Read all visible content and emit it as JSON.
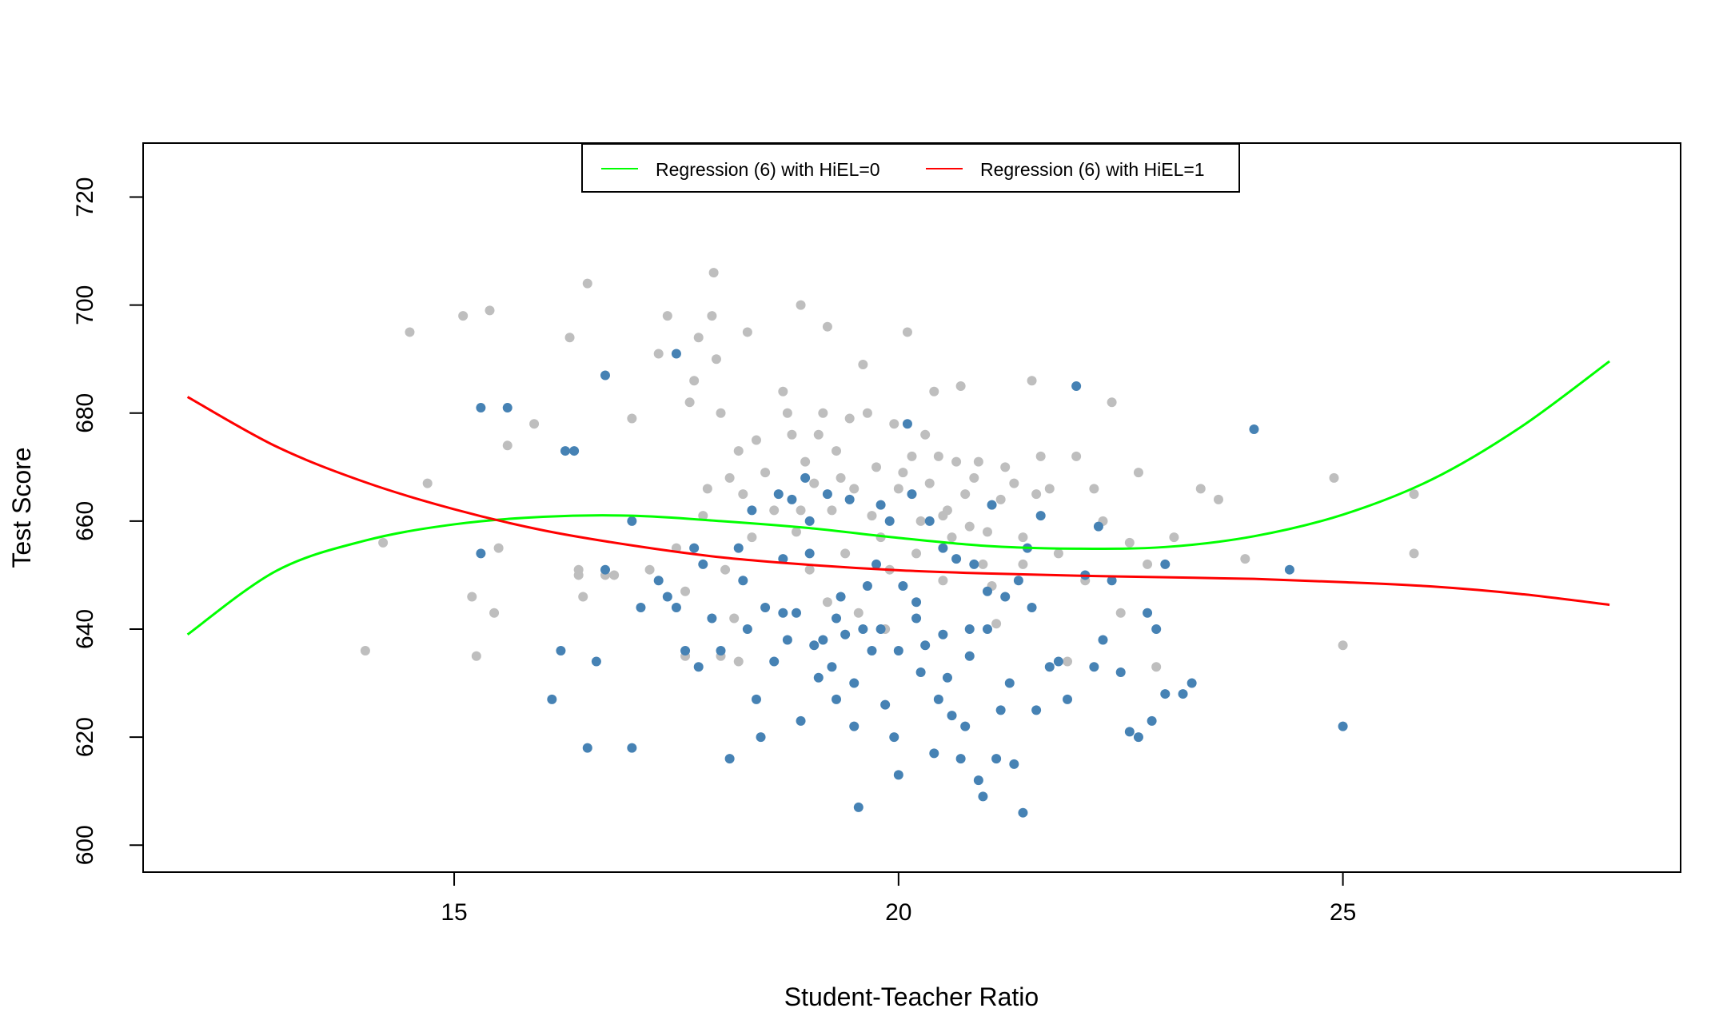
{
  "chart_data": {
    "type": "scatter",
    "title": "",
    "xlabel": "Student-Teacher Ratio",
    "ylabel": "Test Score",
    "xlim": [
      11.5,
      28.8
    ],
    "ylim": [
      595,
      730
    ],
    "xticks": [
      15,
      20,
      25
    ],
    "yticks": [
      600,
      620,
      640,
      660,
      680,
      700,
      720
    ],
    "grid": false,
    "legend_position": "top-center",
    "colors": {
      "points_low_el": "#bebebe",
      "points_high_el": "#4682b4",
      "curve_hiel0": "#00ff00",
      "curve_hiel1": "#ff0000"
    },
    "series": [
      {
        "kind": "points",
        "color": "#bebebe",
        "points": [
          [
            14.0,
            636
          ],
          [
            14.2,
            656
          ],
          [
            14.5,
            695
          ],
          [
            14.7,
            667
          ],
          [
            15.1,
            698
          ],
          [
            15.2,
            646
          ],
          [
            15.25,
            635
          ],
          [
            15.4,
            699
          ],
          [
            15.45,
            643
          ],
          [
            15.5,
            655
          ],
          [
            15.6,
            674
          ],
          [
            15.9,
            678
          ],
          [
            16.3,
            694
          ],
          [
            16.4,
            651
          ],
          [
            16.45,
            646
          ],
          [
            16.5,
            704
          ],
          [
            16.7,
            650
          ],
          [
            17.0,
            679
          ],
          [
            17.2,
            651
          ],
          [
            17.3,
            691
          ],
          [
            17.4,
            698
          ],
          [
            17.5,
            655
          ],
          [
            17.6,
            647
          ],
          [
            17.65,
            682
          ],
          [
            17.7,
            686
          ],
          [
            17.75,
            694
          ],
          [
            17.8,
            661
          ],
          [
            17.85,
            666
          ],
          [
            17.9,
            698
          ],
          [
            17.92,
            706
          ],
          [
            17.95,
            690
          ],
          [
            18.0,
            680
          ],
          [
            18.05,
            651
          ],
          [
            18.1,
            668
          ],
          [
            18.15,
            642
          ],
          [
            18.2,
            673
          ],
          [
            18.25,
            665
          ],
          [
            18.3,
            695
          ],
          [
            18.35,
            657
          ],
          [
            18.4,
            675
          ],
          [
            18.5,
            669
          ],
          [
            18.6,
            662
          ],
          [
            18.7,
            684
          ],
          [
            18.75,
            680
          ],
          [
            18.8,
            676
          ],
          [
            18.85,
            658
          ],
          [
            18.9,
            700
          ],
          [
            18.95,
            671
          ],
          [
            19.0,
            651
          ],
          [
            19.05,
            667
          ],
          [
            19.1,
            676
          ],
          [
            19.15,
            680
          ],
          [
            19.2,
            696
          ],
          [
            19.25,
            662
          ],
          [
            19.3,
            673
          ],
          [
            19.35,
            668
          ],
          [
            19.4,
            654
          ],
          [
            19.45,
            679
          ],
          [
            19.5,
            666
          ],
          [
            19.55,
            643
          ],
          [
            19.6,
            689
          ],
          [
            19.65,
            680
          ],
          [
            19.7,
            661
          ],
          [
            19.75,
            670
          ],
          [
            19.8,
            657
          ],
          [
            19.85,
            640
          ],
          [
            19.9,
            651
          ],
          [
            19.95,
            678
          ],
          [
            20.0,
            666
          ],
          [
            20.05,
            669
          ],
          [
            20.1,
            695
          ],
          [
            20.15,
            672
          ],
          [
            20.2,
            654
          ],
          [
            20.25,
            660
          ],
          [
            20.3,
            676
          ],
          [
            20.35,
            667
          ],
          [
            20.4,
            684
          ],
          [
            20.45,
            672
          ],
          [
            20.5,
            661
          ],
          [
            20.55,
            662
          ],
          [
            20.6,
            657
          ],
          [
            20.65,
            671
          ],
          [
            20.7,
            685
          ],
          [
            20.75,
            665
          ],
          [
            20.8,
            659
          ],
          [
            20.85,
            668
          ],
          [
            20.9,
            671
          ],
          [
            20.95,
            652
          ],
          [
            21.0,
            658
          ],
          [
            21.05,
            648
          ],
          [
            21.1,
            641
          ],
          [
            21.15,
            664
          ],
          [
            21.2,
            670
          ],
          [
            21.3,
            667
          ],
          [
            21.4,
            652
          ],
          [
            21.5,
            686
          ],
          [
            21.55,
            665
          ],
          [
            21.6,
            672
          ],
          [
            21.7,
            666
          ],
          [
            21.8,
            654
          ],
          [
            21.9,
            634
          ],
          [
            22.0,
            672
          ],
          [
            22.1,
            649
          ],
          [
            22.2,
            666
          ],
          [
            22.3,
            660
          ],
          [
            22.4,
            682
          ],
          [
            22.5,
            643
          ],
          [
            22.6,
            656
          ],
          [
            22.7,
            669
          ],
          [
            22.8,
            652
          ],
          [
            22.9,
            633
          ],
          [
            23.1,
            657
          ],
          [
            23.4,
            666
          ],
          [
            23.6,
            664
          ],
          [
            23.9,
            653
          ],
          [
            24.9,
            668
          ],
          [
            25.0,
            637
          ],
          [
            25.8,
            665
          ],
          [
            25.8,
            654
          ],
          [
            18.0,
            635
          ],
          [
            17.6,
            635
          ],
          [
            18.2,
            634
          ],
          [
            16.4,
            650
          ],
          [
            16.8,
            650
          ],
          [
            19.2,
            645
          ],
          [
            20.5,
            649
          ],
          [
            21.4,
            657
          ],
          [
            18.9,
            662
          ]
        ]
      },
      {
        "kind": "points",
        "color": "#4682b4",
        "points": [
          [
            15.3,
            681
          ],
          [
            15.6,
            681
          ],
          [
            15.3,
            654
          ],
          [
            16.1,
            627
          ],
          [
            16.2,
            636
          ],
          [
            16.25,
            673
          ],
          [
            16.35,
            673
          ],
          [
            16.5,
            618
          ],
          [
            16.6,
            634
          ],
          [
            16.7,
            687
          ],
          [
            16.7,
            651
          ],
          [
            17.0,
            660
          ],
          [
            17.0,
            618
          ],
          [
            17.1,
            644
          ],
          [
            17.3,
            649
          ],
          [
            17.4,
            646
          ],
          [
            17.5,
            691
          ],
          [
            17.5,
            644
          ],
          [
            17.6,
            636
          ],
          [
            17.7,
            655
          ],
          [
            17.75,
            633
          ],
          [
            17.8,
            652
          ],
          [
            17.9,
            642
          ],
          [
            18.0,
            636
          ],
          [
            18.1,
            616
          ],
          [
            18.2,
            655
          ],
          [
            18.25,
            649
          ],
          [
            18.3,
            640
          ],
          [
            18.35,
            662
          ],
          [
            18.4,
            627
          ],
          [
            18.45,
            620
          ],
          [
            18.5,
            644
          ],
          [
            18.6,
            634
          ],
          [
            18.65,
            665
          ],
          [
            18.7,
            643
          ],
          [
            18.75,
            638
          ],
          [
            18.8,
            664
          ],
          [
            18.85,
            643
          ],
          [
            18.9,
            623
          ],
          [
            18.95,
            668
          ],
          [
            19.0,
            654
          ],
          [
            19.05,
            637
          ],
          [
            19.1,
            631
          ],
          [
            19.15,
            638
          ],
          [
            19.2,
            665
          ],
          [
            19.25,
            633
          ],
          [
            19.3,
            627
          ],
          [
            19.35,
            646
          ],
          [
            19.4,
            639
          ],
          [
            19.45,
            664
          ],
          [
            19.5,
            622
          ],
          [
            19.55,
            607
          ],
          [
            19.6,
            640
          ],
          [
            19.65,
            648
          ],
          [
            19.7,
            636
          ],
          [
            19.75,
            652
          ],
          [
            19.8,
            640
          ],
          [
            19.85,
            626
          ],
          [
            19.9,
            660
          ],
          [
            19.95,
            620
          ],
          [
            20.0,
            613
          ],
          [
            20.05,
            648
          ],
          [
            20.1,
            678
          ],
          [
            20.15,
            665
          ],
          [
            20.2,
            642
          ],
          [
            20.25,
            632
          ],
          [
            20.3,
            637
          ],
          [
            20.35,
            660
          ],
          [
            20.4,
            617
          ],
          [
            20.45,
            627
          ],
          [
            20.5,
            639
          ],
          [
            20.55,
            631
          ],
          [
            20.6,
            624
          ],
          [
            20.65,
            653
          ],
          [
            20.7,
            616
          ],
          [
            20.75,
            622
          ],
          [
            20.8,
            635
          ],
          [
            20.85,
            652
          ],
          [
            20.9,
            612
          ],
          [
            20.95,
            609
          ],
          [
            21.0,
            640
          ],
          [
            21.05,
            663
          ],
          [
            21.1,
            616
          ],
          [
            21.15,
            625
          ],
          [
            21.2,
            646
          ],
          [
            21.25,
            630
          ],
          [
            21.3,
            615
          ],
          [
            21.35,
            649
          ],
          [
            21.4,
            606
          ],
          [
            21.45,
            655
          ],
          [
            21.5,
            644
          ],
          [
            21.55,
            625
          ],
          [
            21.6,
            661
          ],
          [
            21.7,
            633
          ],
          [
            21.8,
            634
          ],
          [
            21.9,
            627
          ],
          [
            22.0,
            685
          ],
          [
            22.1,
            650
          ],
          [
            22.2,
            633
          ],
          [
            22.25,
            659
          ],
          [
            22.3,
            638
          ],
          [
            22.4,
            649
          ],
          [
            22.5,
            632
          ],
          [
            22.6,
            621
          ],
          [
            22.7,
            620
          ],
          [
            22.8,
            643
          ],
          [
            22.85,
            623
          ],
          [
            22.9,
            640
          ],
          [
            23.0,
            628
          ],
          [
            23.0,
            652
          ],
          [
            23.2,
            628
          ],
          [
            23.3,
            630
          ],
          [
            24.0,
            677
          ],
          [
            24.4,
            651
          ],
          [
            25.0,
            622
          ],
          [
            19.0,
            660
          ],
          [
            19.5,
            630
          ],
          [
            20.2,
            645
          ],
          [
            20.8,
            640
          ],
          [
            21.0,
            647
          ],
          [
            19.3,
            642
          ],
          [
            20.0,
            636
          ],
          [
            18.7,
            653
          ],
          [
            19.8,
            663
          ],
          [
            20.5,
            655
          ]
        ]
      },
      {
        "kind": "curve",
        "color": "#00ff00",
        "legend": "Regression (6) with HiEL=0",
        "x": [
          12,
          13,
          14,
          15,
          16,
          17,
          18,
          19,
          20,
          21,
          22,
          23,
          24,
          25,
          26,
          27,
          28
        ],
        "y": [
          639,
          650.8,
          656.4,
          659.4,
          660.8,
          661.0,
          660.0,
          658.7,
          656.9,
          655.4,
          654.9,
          655.2,
          657.2,
          661.2,
          667.7,
          677.4,
          689.6
        ]
      },
      {
        "kind": "curve",
        "color": "#ff0000",
        "legend": "Regression (6) with HiEL=1",
        "x": [
          12,
          13,
          14,
          15,
          16,
          17,
          18,
          19,
          20,
          21,
          22,
          23,
          24,
          25,
          26,
          27,
          28
        ],
        "y": [
          683,
          673.8,
          667.2,
          662.2,
          658.3,
          655.5,
          653.3,
          651.9,
          650.9,
          650.3,
          649.9,
          649.6,
          649.3,
          648.7,
          647.9,
          646.5,
          644.5
        ]
      }
    ]
  },
  "legend": {
    "items": [
      {
        "label": "Regression (6) with HiEL=0",
        "color": "#00ff00"
      },
      {
        "label": "Regression (6) with HiEL=1",
        "color": "#ff0000"
      }
    ]
  }
}
